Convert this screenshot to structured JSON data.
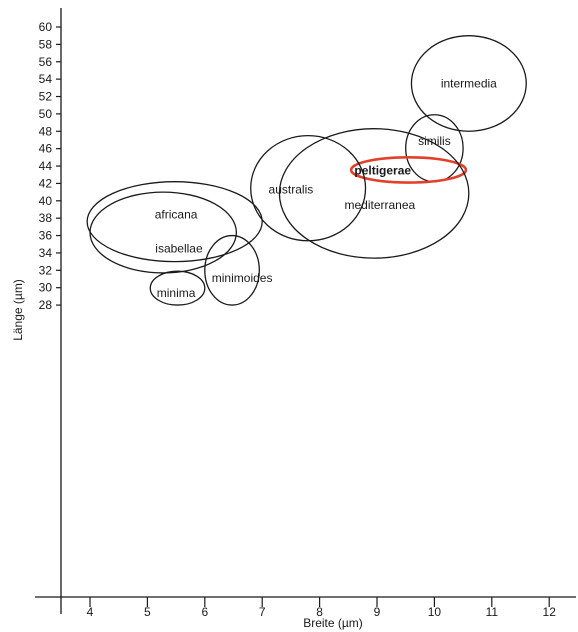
{
  "chart_data": {
    "type": "scatter",
    "title": "",
    "xlabel": "Breite (µm)",
    "ylabel": "Länge (µm)",
    "xlim": [
      3.5,
      12.5
    ],
    "ylim": [
      27,
      61
    ],
    "xticks": [
      "4",
      "5",
      "6",
      "7",
      "8",
      "9",
      "10",
      "11",
      "12"
    ],
    "yticks": [
      "28",
      "30",
      "32",
      "34",
      "36",
      "38",
      "40",
      "42",
      "44",
      "46",
      "48",
      "50",
      "52",
      "54",
      "56",
      "58",
      "60"
    ],
    "grid": false,
    "series": [
      {
        "name": "intermedia",
        "x_range": [
          9.6,
          11.6
        ],
        "y_range": [
          48.0,
          59.0
        ],
        "label": "intermedia",
        "color": "#1a1a1a",
        "emphasis": false
      },
      {
        "name": "similis",
        "x_range": [
          9.5,
          10.5
        ],
        "y_range": [
          42.2,
          49.9
        ],
        "label": "similis",
        "color": "#1a1a1a",
        "emphasis": false
      },
      {
        "name": "peltigerae",
        "x_range": [
          8.55,
          10.55
        ],
        "y_range": [
          42.1,
          45.0
        ],
        "label": "peltigerae",
        "color": "#e2402a",
        "emphasis": true
      },
      {
        "name": "mediterranea",
        "x_range": [
          7.3,
          10.6
        ],
        "y_range": [
          33.4,
          48.3
        ],
        "label": "mediterranea",
        "color": "#1a1a1a",
        "emphasis": false
      },
      {
        "name": "australis",
        "x_range": [
          6.8,
          8.8
        ],
        "y_range": [
          35.4,
          47.5
        ],
        "label": "australis",
        "color": "#1a1a1a",
        "emphasis": false
      },
      {
        "name": "africana",
        "x_range": [
          3.95,
          7.0
        ],
        "y_range": [
          33.0,
          42.2
        ],
        "label": "africana",
        "color": "#1a1a1a",
        "emphasis": false
      },
      {
        "name": "isabellae",
        "x_range": [
          4.0,
          6.55
        ],
        "y_range": [
          31.7,
          41.0
        ],
        "label": "isabellae",
        "color": "#1a1a1a",
        "emphasis": false
      },
      {
        "name": "minimoides",
        "x_range": [
          6.0,
          6.95
        ],
        "y_range": [
          28.0,
          36.0
        ],
        "label": "minimoides",
        "color": "#1a1a1a",
        "emphasis": false
      },
      {
        "name": "minima",
        "x_range": [
          5.05,
          6.0
        ],
        "y_range": [
          28.0,
          31.9
        ],
        "label": "minima",
        "color": "#1a1a1a",
        "emphasis": false
      }
    ]
  }
}
